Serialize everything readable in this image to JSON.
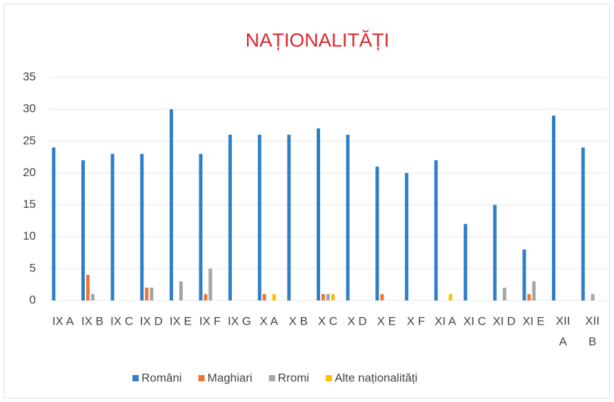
{
  "chart_data": {
    "type": "bar",
    "title": "NAȚIONALITĂȚI",
    "categories": [
      "IX A",
      "IX B",
      "IX C",
      "IX D",
      "IX E",
      "IX F",
      "IX G",
      "X A",
      "X B",
      "X C",
      "X D",
      "X E",
      "X F",
      "XI A",
      "XI C",
      "XI D",
      "XI E",
      "XII A",
      "XII B"
    ],
    "series": [
      {
        "name": "Români",
        "color": "#2e7fc8",
        "values": [
          24,
          22,
          23,
          23,
          30,
          23,
          26,
          26,
          26,
          27,
          26,
          21,
          20,
          22,
          12,
          15,
          8,
          29,
          24
        ]
      },
      {
        "name": "Maghiari",
        "color": "#ec7633",
        "values": [
          0,
          4,
          0,
          2,
          0,
          1,
          0,
          1,
          0,
          1,
          0,
          1,
          0,
          0,
          0,
          0,
          1,
          0,
          0
        ]
      },
      {
        "name": "Rromi",
        "color": "#a5a5a5",
        "values": [
          0,
          1,
          0,
          2,
          3,
          5,
          0,
          0,
          0,
          1,
          0,
          0,
          0,
          0,
          0,
          2,
          3,
          0,
          1
        ]
      },
      {
        "name": "Alte naționalități",
        "color": "#fcc000",
        "values": [
          0,
          0,
          0,
          0,
          0,
          0,
          0,
          1,
          0,
          1,
          0,
          0,
          0,
          1,
          0,
          0,
          0,
          0,
          0
        ]
      }
    ],
    "ylim": [
      0,
      35
    ],
    "yticks": [
      0,
      5,
      10,
      15,
      20,
      25,
      30,
      35
    ],
    "grid": true,
    "legend": "bottom"
  }
}
